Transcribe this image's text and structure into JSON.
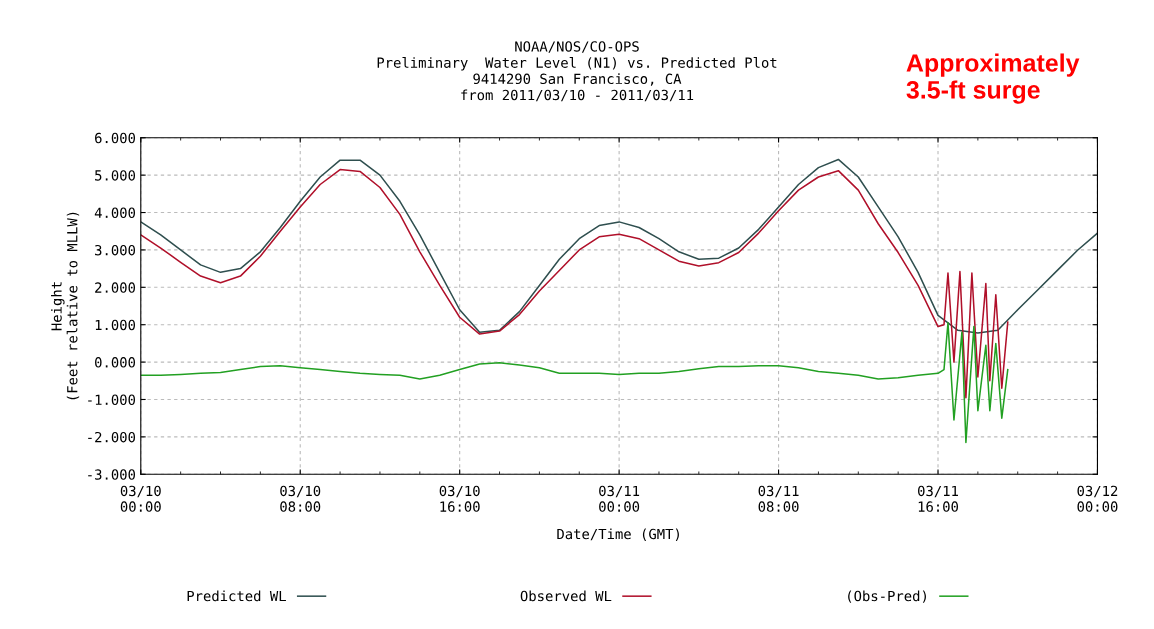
{
  "chart_data": {
    "type": "line",
    "title": "NOAA/NOS/CO-OPS\nPreliminary  Water Level (N1) vs. Predicted Plot\n9414290 San Francisco, CA\nfrom 2011/03/10 - 2011/03/11",
    "xlabel": "Date/Time (GMT)",
    "ylabel": "Height\n(Feet relative to MLLW)",
    "annotations": [
      "Approximately\n3.5-ft surge"
    ],
    "xlim": [
      "2011-03-10T00:00",
      "2011-03-12T00:00"
    ],
    "xticks": [
      {
        "value": "2011-03-10T00:00",
        "label": "03/10\n00:00"
      },
      {
        "value": "2011-03-10T08:00",
        "label": "03/10\n08:00"
      },
      {
        "value": "2011-03-10T16:00",
        "label": "03/10\n16:00"
      },
      {
        "value": "2011-03-11T00:00",
        "label": "03/11\n00:00"
      },
      {
        "value": "2011-03-11T08:00",
        "label": "03/11\n08:00"
      },
      {
        "value": "2011-03-11T16:00",
        "label": "03/11\n16:00"
      },
      {
        "value": "2011-03-12T00:00",
        "label": "03/12\n00:00"
      }
    ],
    "ylim": [
      -3,
      6
    ],
    "yticks": [
      {
        "value": -3,
        "label": "-3.000"
      },
      {
        "value": -2,
        "label": "-2.000"
      },
      {
        "value": -1,
        "label": "-1.000"
      },
      {
        "value": 0,
        "label": "0.000"
      },
      {
        "value": 1,
        "label": "1.000"
      },
      {
        "value": 2,
        "label": "2.000"
      },
      {
        "value": 3,
        "label": "3.000"
      },
      {
        "value": 4,
        "label": "4.000"
      },
      {
        "value": 5,
        "label": "5.000"
      },
      {
        "value": 6,
        "label": "6.000"
      }
    ],
    "grid": true,
    "legend": "bottom",
    "line_style": "solid",
    "marker": "none",
    "series": [
      {
        "name": "Predicted WL",
        "color": "#2f4f4f",
        "x": [
          "2011-03-10T00:00",
          "2011-03-10T01:00",
          "2011-03-10T02:00",
          "2011-03-10T03:00",
          "2011-03-10T04:00",
          "2011-03-10T05:00",
          "2011-03-10T06:00",
          "2011-03-10T07:00",
          "2011-03-10T08:00",
          "2011-03-10T09:00",
          "2011-03-10T10:00",
          "2011-03-10T11:00",
          "2011-03-10T12:00",
          "2011-03-10T13:00",
          "2011-03-10T14:00",
          "2011-03-10T15:00",
          "2011-03-10T16:00",
          "2011-03-10T17:00",
          "2011-03-10T18:00",
          "2011-03-10T19:00",
          "2011-03-10T20:00",
          "2011-03-10T21:00",
          "2011-03-10T22:00",
          "2011-03-10T23:00",
          "2011-03-11T00:00",
          "2011-03-11T01:00",
          "2011-03-11T02:00",
          "2011-03-11T03:00",
          "2011-03-11T04:00",
          "2011-03-11T05:00",
          "2011-03-11T06:00",
          "2011-03-11T07:00",
          "2011-03-11T08:00",
          "2011-03-11T09:00",
          "2011-03-11T10:00",
          "2011-03-11T11:00",
          "2011-03-11T12:00",
          "2011-03-11T13:00",
          "2011-03-11T14:00",
          "2011-03-11T15:00",
          "2011-03-11T16:00",
          "2011-03-11T17:00",
          "2011-03-11T18:00",
          "2011-03-11T19:00",
          "2011-03-11T20:00",
          "2011-03-11T21:00",
          "2011-03-11T22:00",
          "2011-03-11T23:00",
          "2011-03-12T00:00"
        ],
        "values": [
          3.75,
          3.4,
          3.0,
          2.6,
          2.4,
          2.5,
          2.95,
          3.6,
          4.3,
          4.95,
          5.4,
          5.4,
          5.0,
          4.3,
          3.4,
          2.4,
          1.4,
          0.8,
          0.85,
          1.35,
          2.05,
          2.75,
          3.3,
          3.65,
          3.75,
          3.6,
          3.3,
          2.95,
          2.75,
          2.78,
          3.05,
          3.55,
          4.15,
          4.75,
          5.2,
          5.42,
          4.95,
          4.15,
          3.35,
          2.4,
          1.25,
          0.85,
          0.78,
          0.85,
          1.4,
          1.93,
          2.46,
          2.99,
          3.45
        ]
      },
      {
        "name": "Observed WL",
        "color": "#b0102a",
        "x": [
          "2011-03-10T00:00",
          "2011-03-10T01:00",
          "2011-03-10T02:00",
          "2011-03-10T03:00",
          "2011-03-10T04:00",
          "2011-03-10T05:00",
          "2011-03-10T06:00",
          "2011-03-10T07:00",
          "2011-03-10T08:00",
          "2011-03-10T09:00",
          "2011-03-10T10:00",
          "2011-03-10T11:00",
          "2011-03-10T12:00",
          "2011-03-10T13:00",
          "2011-03-10T14:00",
          "2011-03-10T15:00",
          "2011-03-10T16:00",
          "2011-03-10T17:00",
          "2011-03-10T18:00",
          "2011-03-10T19:00",
          "2011-03-10T20:00",
          "2011-03-10T21:00",
          "2011-03-10T22:00",
          "2011-03-10T23:00",
          "2011-03-11T00:00",
          "2011-03-11T01:00",
          "2011-03-11T02:00",
          "2011-03-11T03:00",
          "2011-03-11T04:00",
          "2011-03-11T05:00",
          "2011-03-11T06:00",
          "2011-03-11T07:00",
          "2011-03-11T08:00",
          "2011-03-11T09:00",
          "2011-03-11T10:00",
          "2011-03-11T11:00",
          "2011-03-11T12:00",
          "2011-03-11T13:00",
          "2011-03-11T14:00",
          "2011-03-11T15:00",
          "2011-03-11T16:00",
          "2011-03-11T16:18",
          "2011-03-11T16:30",
          "2011-03-11T16:48",
          "2011-03-11T17:06",
          "2011-03-11T17:24",
          "2011-03-11T17:42",
          "2011-03-11T18:00",
          "2011-03-11T18:24",
          "2011-03-11T18:36",
          "2011-03-11T18:54",
          "2011-03-11T19:12",
          "2011-03-11T19:30"
        ],
        "values": [
          3.4,
          3.05,
          2.67,
          2.3,
          2.12,
          2.3,
          2.83,
          3.5,
          4.15,
          4.75,
          5.15,
          5.1,
          4.67,
          3.95,
          2.95,
          2.05,
          1.2,
          0.75,
          0.83,
          1.27,
          1.9,
          2.45,
          3.0,
          3.35,
          3.42,
          3.3,
          3.0,
          2.7,
          2.57,
          2.66,
          2.93,
          3.45,
          4.05,
          4.6,
          4.95,
          5.12,
          4.6,
          3.7,
          2.93,
          2.05,
          0.95,
          1.0,
          2.38,
          0.0,
          2.42,
          -0.95,
          2.38,
          -0.4,
          2.1,
          -0.5,
          1.8,
          -0.7,
          1.07
        ]
      },
      {
        "name": "(Obs-Pred)",
        "color": "#22a022",
        "x": [
          "2011-03-10T00:00",
          "2011-03-10T01:00",
          "2011-03-10T02:00",
          "2011-03-10T03:00",
          "2011-03-10T04:00",
          "2011-03-10T05:00",
          "2011-03-10T06:00",
          "2011-03-10T07:00",
          "2011-03-10T08:00",
          "2011-03-10T09:00",
          "2011-03-10T10:00",
          "2011-03-10T11:00",
          "2011-03-10T12:00",
          "2011-03-10T13:00",
          "2011-03-10T14:00",
          "2011-03-10T15:00",
          "2011-03-10T16:00",
          "2011-03-10T17:00",
          "2011-03-10T18:00",
          "2011-03-10T19:00",
          "2011-03-10T20:00",
          "2011-03-10T21:00",
          "2011-03-10T22:00",
          "2011-03-10T23:00",
          "2011-03-11T00:00",
          "2011-03-11T01:00",
          "2011-03-11T02:00",
          "2011-03-11T03:00",
          "2011-03-11T04:00",
          "2011-03-11T05:00",
          "2011-03-11T06:00",
          "2011-03-11T07:00",
          "2011-03-11T08:00",
          "2011-03-11T09:00",
          "2011-03-11T10:00",
          "2011-03-11T11:00",
          "2011-03-11T12:00",
          "2011-03-11T13:00",
          "2011-03-11T14:00",
          "2011-03-11T15:00",
          "2011-03-11T16:00",
          "2011-03-11T16:18",
          "2011-03-11T16:30",
          "2011-03-11T16:48",
          "2011-03-11T17:12",
          "2011-03-11T17:24",
          "2011-03-11T17:48",
          "2011-03-11T18:00",
          "2011-03-11T18:24",
          "2011-03-11T18:36",
          "2011-03-11T18:54",
          "2011-03-11T19:12",
          "2011-03-11T19:30"
        ],
        "values": [
          -0.35,
          -0.35,
          -0.33,
          -0.3,
          -0.28,
          -0.2,
          -0.12,
          -0.1,
          -0.15,
          -0.2,
          -0.25,
          -0.3,
          -0.33,
          -0.35,
          -0.45,
          -0.35,
          -0.2,
          -0.05,
          -0.02,
          -0.08,
          -0.15,
          -0.3,
          -0.3,
          -0.3,
          -0.33,
          -0.3,
          -0.3,
          -0.25,
          -0.18,
          -0.12,
          -0.12,
          -0.1,
          -0.1,
          -0.15,
          -0.25,
          -0.3,
          -0.35,
          -0.45,
          -0.42,
          -0.35,
          -0.3,
          -0.2,
          1.05,
          -1.55,
          0.8,
          -2.15,
          0.95,
          -1.3,
          0.45,
          -1.3,
          0.5,
          -1.5,
          -0.2
        ]
      }
    ]
  }
}
